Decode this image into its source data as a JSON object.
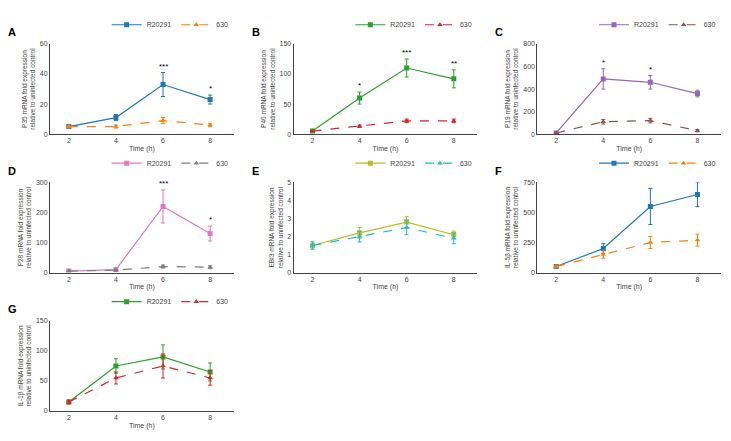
{
  "chart_data": [
    {
      "type": "line",
      "title": "A",
      "x_label": "Time (h)",
      "y_label": "P35 mRNA fold expression\nrelative to uninfected control",
      "x": [
        2,
        4,
        6,
        8
      ],
      "xlim": [
        1.2,
        9
      ],
      "xticks": [
        2,
        4,
        6,
        8
      ],
      "ylim": [
        0,
        60
      ],
      "yticks": [
        0,
        20,
        40,
        60
      ],
      "grid": false,
      "legend": "upper right",
      "series": [
        {
          "name": "R20291",
          "values": [
            5,
            11,
            33,
            23
          ],
          "errors": [
            1,
            2,
            8,
            3
          ],
          "marker": "square",
          "line_style": "solid"
        },
        {
          "name": "630",
          "values": [
            5,
            5,
            9,
            6
          ],
          "errors": [
            1,
            1,
            2,
            1
          ],
          "marker": "triangle",
          "line_style": "dashed"
        }
      ],
      "annotations": [
        {
          "x": 6,
          "y": 41,
          "text": "***"
        },
        {
          "x": 8,
          "y": 26,
          "text": "*"
        }
      ]
    },
    {
      "type": "line",
      "title": "B",
      "x_label": "Time (h)",
      "y_label": "P40 mRNA fold expression\nrelative to uninfected control",
      "x": [
        2,
        4,
        6,
        8
      ],
      "xlim": [
        1.2,
        9
      ],
      "xticks": [
        2,
        4,
        6,
        8
      ],
      "ylim": [
        0,
        150
      ],
      "yticks": [
        0,
        50,
        100,
        150
      ],
      "grid": false,
      "legend": "upper right",
      "series": [
        {
          "name": "R20291",
          "values": [
            5,
            60,
            110,
            92
          ],
          "errors": [
            2,
            10,
            15,
            15
          ],
          "marker": "square",
          "line_style": "solid"
        },
        {
          "name": "630",
          "values": [
            5,
            13,
            22,
            22
          ],
          "errors": [
            1,
            2,
            3,
            3
          ],
          "marker": "triangle",
          "line_style": "dashed"
        }
      ],
      "annotations": [
        {
          "x": 4,
          "y": 70,
          "text": "*"
        },
        {
          "x": 6,
          "y": 125,
          "text": "***"
        },
        {
          "x": 8,
          "y": 107,
          "text": "**"
        }
      ]
    },
    {
      "type": "line",
      "title": "C",
      "x_label": "Time (h)",
      "y_label": "P19 mRNA fold expression\nrelative to uninfected control",
      "x": [
        2,
        4,
        6,
        8
      ],
      "xlim": [
        1.2,
        9
      ],
      "xticks": [
        2,
        4,
        6,
        8
      ],
      "ylim": [
        0,
        800
      ],
      "yticks": [
        0,
        200,
        400,
        600,
        800
      ],
      "grid": false,
      "legend": "upper right",
      "series": [
        {
          "name": "R20291",
          "values": [
            10,
            490,
            460,
            360
          ],
          "errors": [
            5,
            90,
            60,
            30
          ],
          "marker": "square",
          "line_style": "solid"
        },
        {
          "name": "630",
          "values": [
            10,
            110,
            120,
            30
          ],
          "errors": [
            2,
            20,
            20,
            10
          ],
          "marker": "triangle",
          "line_style": "dashed"
        }
      ],
      "annotations": [
        {
          "x": 4,
          "y": 580,
          "text": "*"
        },
        {
          "x": 6,
          "y": 520,
          "text": "*"
        }
      ]
    },
    {
      "type": "line",
      "title": "D",
      "x_label": "Time (h)",
      "y_label": "P28 mRNA fold expression\nrelative to uninfected control",
      "x": [
        2,
        4,
        6,
        8
      ],
      "xlim": [
        1.2,
        9
      ],
      "xticks": [
        2,
        4,
        6,
        8
      ],
      "ylim": [
        0,
        300
      ],
      "yticks": [
        0,
        100,
        200,
        300
      ],
      "grid": false,
      "legend": "upper right",
      "series": [
        {
          "name": "R20291",
          "values": [
            5,
            10,
            220,
            130
          ],
          "errors": [
            1,
            3,
            55,
            25
          ],
          "marker": "square",
          "line_style": "solid"
        },
        {
          "name": "630",
          "values": [
            5,
            8,
            20,
            18
          ],
          "errors": [
            1,
            2,
            5,
            5
          ],
          "marker": "triangle",
          "line_style": "dashed"
        }
      ],
      "annotations": [
        {
          "x": 6,
          "y": 275,
          "text": "***"
        },
        {
          "x": 8,
          "y": 155,
          "text": "*"
        }
      ]
    },
    {
      "type": "line",
      "title": "E",
      "x_label": "Time (h)",
      "y_label": "EBI3 mRNA fold expression\nrelative to uninfected control",
      "x": [
        2,
        4,
        6,
        8
      ],
      "xlim": [
        1.2,
        9
      ],
      "xticks": [
        2,
        4,
        6,
        8
      ],
      "ylim": [
        0,
        5
      ],
      "yticks": [
        0,
        1,
        2,
        3,
        4,
        5
      ],
      "grid": false,
      "legend": "upper right",
      "series": [
        {
          "name": "R20291",
          "values": [
            1.5,
            2.2,
            2.8,
            2.1
          ],
          "errors": [
            0.2,
            0.3,
            0.3,
            0.2
          ],
          "marker": "square",
          "line_style": "solid"
        },
        {
          "name": "630",
          "values": [
            1.5,
            2.0,
            2.5,
            1.9
          ],
          "errors": [
            0.2,
            0.3,
            0.4,
            0.3
          ],
          "marker": "triangle",
          "line_style": "dashed"
        }
      ],
      "annotations": []
    },
    {
      "type": "line",
      "title": "F",
      "x_label": "Time (h)",
      "y_label": "IL-5β mRNA fold expression\nrelative to uninfected control",
      "x": [
        2,
        4,
        6,
        8
      ],
      "xlim": [
        1.2,
        9
      ],
      "xticks": [
        2,
        4,
        6,
        8
      ],
      "ylim": [
        0,
        750
      ],
      "yticks": [
        0,
        250,
        500,
        750
      ],
      "grid": false,
      "legend": "upper right",
      "series": [
        {
          "name": "R20291",
          "values": [
            50,
            200,
            550,
            650
          ],
          "errors": [
            10,
            40,
            150,
            100
          ],
          "marker": "square",
          "line_style": "solid"
        },
        {
          "name": "630",
          "values": [
            50,
            150,
            250,
            270
          ],
          "errors": [
            10,
            30,
            50,
            50
          ],
          "marker": "triangle",
          "line_style": "dashed"
        }
      ],
      "annotations": []
    },
    {
      "type": "line",
      "title": "G",
      "x_label": "Time (h)",
      "y_label": "IL-1β mRNA fold expression\nrelative to uninfected control",
      "x": [
        2,
        4,
        6,
        8
      ],
      "xlim": [
        1.2,
        9
      ],
      "xticks": [
        2,
        4,
        6,
        8
      ],
      "ylim": [
        0,
        150
      ],
      "yticks": [
        0,
        50,
        100,
        150
      ],
      "grid": false,
      "legend": "upper right",
      "series": [
        {
          "name": "R20291",
          "values": [
            15,
            75,
            90,
            65
          ],
          "errors": [
            3,
            12,
            20,
            15
          ],
          "marker": "square",
          "line_style": "solid"
        },
        {
          "name": "630",
          "values": [
            15,
            55,
            75,
            55
          ],
          "errors": [
            3,
            10,
            20,
            12
          ],
          "marker": "triangle",
          "line_style": "dashed"
        }
      ],
      "annotations": []
    }
  ]
}
